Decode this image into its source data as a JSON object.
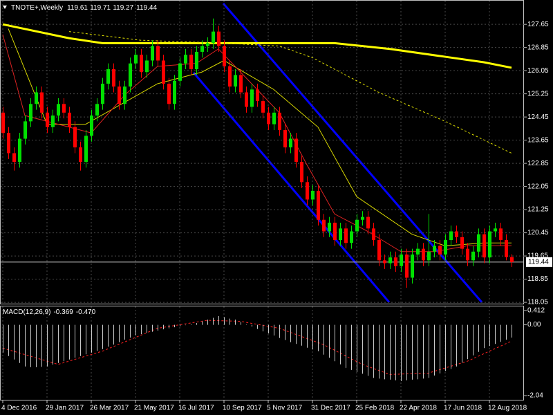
{
  "chart_data": [
    {
      "type": "candlestick",
      "title": "TNOTE+,Weekly",
      "categories": [
        "4 Dec 2016",
        null,
        null,
        null,
        null,
        null,
        null,
        null,
        "29 Jan 2017",
        null,
        null,
        null,
        null,
        null,
        null,
        null,
        "26 Mar 2017",
        null,
        null,
        null,
        null,
        null,
        null,
        null,
        "21 May 2017",
        null,
        null,
        null,
        null,
        null,
        null,
        null,
        "16 Jul 2017",
        null,
        null,
        null,
        null,
        null,
        null,
        null,
        "10 Sep 2017",
        null,
        null,
        null,
        null,
        null,
        null,
        null,
        "5 Nov 2017",
        null,
        null,
        null,
        null,
        null,
        null,
        null,
        "31 Dec 2017",
        null,
        null,
        null,
        null,
        null,
        null,
        null,
        "25 Feb 2018",
        null,
        null,
        null,
        null,
        null,
        null,
        null,
        "22 Apr 2018",
        null,
        null,
        null,
        null,
        null,
        null,
        null,
        "17 Jun 2018",
        null,
        null,
        null,
        null,
        null,
        null,
        null,
        "12 Aug 2018",
        null,
        null,
        null,
        null
      ],
      "open": [
        124.6,
        123.9,
        123.2,
        122.9,
        123.7,
        124.3,
        124.9,
        125.3,
        124.6,
        124.1,
        124.5,
        124.9,
        124.6,
        124.1,
        123.4,
        122.9,
        123.8,
        124.5,
        124.9,
        125.6,
        126.1,
        125.5,
        124.9,
        125.5,
        126.3,
        126.6,
        126.0,
        126.4,
        126.9,
        126.4,
        125.6,
        124.9,
        125.7,
        126.3,
        126.6,
        126.1,
        126.7,
        126.9,
        127.0,
        127.4,
        126.9,
        126.2,
        125.5,
        125.9,
        125.3,
        124.8,
        125.4,
        125.0,
        124.6,
        124.2,
        124.6,
        124.0,
        123.4,
        123.7,
        122.9,
        122.2,
        121.6,
        121.9,
        120.9,
        120.5,
        120.8,
        120.2,
        120.6,
        120.1,
        120.5,
        120.9,
        121.0,
        120.6,
        120.2,
        119.5,
        119.4,
        119.6,
        119.3,
        119.7,
        118.9,
        119.7,
        119.9,
        119.5,
        119.8,
        120.0,
        119.7,
        120.2,
        120.5,
        120.3,
        119.9,
        119.5,
        119.8,
        120.4,
        119.6,
        120.5,
        120.6,
        120.2,
        119.61
      ],
      "high": [
        124.8,
        124.1,
        123.4,
        123.9,
        124.5,
        125.1,
        125.5,
        125.5,
        124.8,
        124.7,
        125.1,
        125.1,
        124.8,
        124.3,
        123.6,
        124.0,
        124.7,
        125.1,
        125.8,
        126.3,
        126.3,
        125.7,
        125.7,
        126.5,
        126.8,
        126.8,
        126.6,
        127.1,
        127.1,
        126.6,
        125.8,
        125.9,
        126.5,
        126.8,
        126.8,
        126.9,
        127.1,
        127.2,
        127.85,
        127.6,
        127.1,
        126.4,
        126.1,
        126.1,
        125.5,
        125.6,
        125.6,
        125.2,
        124.8,
        124.8,
        124.8,
        124.2,
        123.9,
        123.9,
        123.1,
        122.4,
        122.1,
        122.1,
        121.1,
        121.0,
        121.0,
        120.8,
        120.8,
        120.7,
        121.1,
        121.2,
        121.2,
        120.8,
        120.4,
        119.7,
        119.8,
        119.8,
        119.9,
        119.9,
        119.9,
        120.1,
        120.1,
        121.1,
        120.2,
        120.2,
        120.4,
        120.7,
        120.7,
        120.5,
        120.1,
        120.0,
        120.6,
        120.6,
        120.7,
        120.8,
        120.8,
        120.4,
        119.71
      ],
      "low": [
        123.7,
        123.0,
        122.6,
        122.7,
        123.5,
        124.1,
        124.7,
        124.4,
        123.9,
        123.9,
        124.3,
        124.4,
        123.9,
        123.2,
        122.6,
        122.7,
        123.6,
        124.3,
        124.7,
        125.4,
        125.3,
        124.7,
        124.7,
        125.3,
        126.1,
        125.8,
        125.8,
        126.2,
        126.2,
        125.4,
        124.7,
        124.7,
        125.5,
        126.1,
        125.9,
        125.9,
        126.5,
        126.7,
        126.8,
        126.7,
        126.0,
        125.3,
        125.3,
        125.1,
        124.6,
        124.6,
        124.8,
        124.4,
        124.0,
        124.0,
        123.8,
        123.2,
        123.2,
        122.7,
        122.0,
        121.4,
        121.4,
        120.7,
        120.3,
        120.3,
        120.0,
        120.0,
        119.9,
        119.9,
        120.3,
        120.7,
        120.4,
        120.0,
        119.3,
        119.2,
        119.2,
        119.1,
        119.1,
        118.55,
        118.7,
        119.5,
        119.3,
        119.3,
        119.6,
        119.5,
        119.5,
        120.0,
        120.1,
        119.7,
        119.3,
        119.3,
        119.6,
        119.4,
        119.4,
        120.3,
        120.0,
        119.5,
        119.27
      ],
      "close": [
        123.9,
        123.2,
        122.9,
        123.7,
        124.3,
        124.9,
        125.3,
        124.6,
        124.1,
        124.5,
        124.9,
        124.6,
        124.1,
        123.4,
        122.9,
        123.8,
        124.5,
        124.9,
        125.6,
        126.1,
        125.5,
        124.9,
        125.5,
        126.3,
        126.6,
        126.0,
        126.4,
        126.9,
        126.4,
        125.6,
        124.9,
        125.7,
        126.3,
        126.6,
        126.1,
        126.7,
        126.9,
        127.0,
        127.4,
        126.9,
        126.2,
        125.5,
        125.9,
        125.3,
        124.8,
        125.4,
        125.0,
        124.6,
        124.2,
        124.6,
        124.0,
        123.4,
        123.7,
        122.9,
        122.2,
        121.6,
        121.9,
        120.9,
        120.5,
        120.8,
        120.2,
        120.6,
        120.1,
        120.5,
        120.9,
        121.0,
        120.6,
        120.2,
        119.5,
        119.4,
        119.6,
        119.3,
        119.7,
        118.9,
        119.7,
        119.9,
        119.5,
        119.8,
        120.0,
        119.7,
        120.2,
        120.5,
        120.3,
        119.9,
        119.5,
        119.8,
        120.4,
        119.6,
        120.5,
        120.6,
        120.2,
        119.61,
        119.44
      ],
      "up_color": "#00e000",
      "down_color": "#ff0000",
      "ylim": [
        117.98,
        128.49
      ],
      "yticks": [
        127.65,
        126.85,
        126.05,
        125.25,
        124.45,
        123.65,
        122.85,
        122.05,
        121.25,
        120.45,
        119.65,
        118.85,
        118.05
      ],
      "grid": true,
      "overlays": [
        {
          "color": "#ffff00",
          "width": 3,
          "dashed": false,
          "x": [
            0,
            12,
            18,
            37,
            60,
            70,
            80,
            87,
            92
          ],
          "values": [
            127.65,
            127.17,
            127.0,
            127.0,
            127.0,
            126.8,
            126.53,
            126.34,
            126.15
          ]
        },
        {
          "color": "#e0e000",
          "width": 1,
          "dashed": true,
          "x": [
            12,
            25,
            40,
            50,
            56,
            68,
            80,
            92
          ],
          "values": [
            127.4,
            127.1,
            127.0,
            126.9,
            126.5,
            125.3,
            124.3,
            123.2
          ]
        },
        {
          "color": "#d8d800",
          "width": 1,
          "dashed": false,
          "x": [
            1,
            8,
            15,
            28,
            36,
            40,
            49,
            57,
            64,
            74,
            80,
            87,
            92
          ],
          "values": [
            127.5,
            124.2,
            124.2,
            125.6,
            126.0,
            126.4,
            125.4,
            124.1,
            121.7,
            120.4,
            120.0,
            120.1,
            120.1
          ]
        },
        {
          "color": "#dd2222",
          "width": 1,
          "dashed": false,
          "x": [
            0,
            4,
            8,
            12,
            16,
            22,
            28,
            35,
            39,
            44,
            50,
            55,
            60,
            66,
            72,
            78,
            84,
            92
          ],
          "values": [
            127.3,
            124.5,
            124.3,
            124.1,
            123.9,
            125.2,
            126.2,
            126.3,
            126.8,
            125.8,
            124.6,
            122.8,
            121.1,
            120.5,
            119.8,
            119.8,
            120.0,
            120.0
          ]
        }
      ]
    },
    {
      "type": "macd",
      "title": "MACD(12,26,9)",
      "values": [
        -0.8,
        -0.9,
        -1.0,
        -1.1,
        -1.2,
        -1.22,
        -1.22,
        -1.21,
        -1.2,
        -1.15,
        -1.1,
        -1.05,
        -1.0,
        -0.95,
        -0.9,
        -0.85,
        -0.8,
        -0.75,
        -0.7,
        -0.63,
        -0.57,
        -0.5,
        -0.43,
        -0.37,
        -0.3,
        -0.27,
        -0.23,
        -0.2,
        -0.17,
        -0.13,
        -0.1,
        -0.07,
        -0.04,
        -0.01,
        0.02,
        0.05,
        0.1,
        0.15,
        0.2,
        0.25,
        0.22,
        0.18,
        0.15,
        0.08,
        0.01,
        -0.05,
        -0.12,
        -0.19,
        -0.25,
        -0.31,
        -0.38,
        -0.44,
        -0.5,
        -0.55,
        -0.6,
        -0.66,
        -0.71,
        -0.76,
        -0.86,
        -0.95,
        -1.05,
        -1.14,
        -1.24,
        -1.3,
        -1.36,
        -1.41,
        -1.47,
        -1.53,
        -1.55,
        -1.57,
        -1.58,
        -1.6,
        -1.62,
        -1.6,
        -1.58,
        -1.57,
        -1.55,
        -1.53,
        -1.46,
        -1.4,
        -1.33,
        -1.27,
        -1.2,
        -1.09,
        -0.99,
        -0.88,
        -0.78,
        -0.67,
        -0.61,
        -0.55,
        -0.49,
        -0.43,
        -0.369
      ],
      "color": "#c8c8c8",
      "signal": {
        "color": "#ff2020",
        "x": [
          0,
          10,
          18,
          28,
          37,
          43,
          50,
          58,
          65,
          70,
          77,
          84,
          92
        ],
        "values": [
          -0.67,
          -1.14,
          -0.76,
          -0.1,
          0.13,
          0.1,
          -0.1,
          -0.57,
          -1.14,
          -1.43,
          -1.39,
          -1.05,
          -0.47
        ],
        "value_labels": [
          null,
          null,
          null,
          null,
          null,
          null,
          null,
          null,
          null,
          null,
          null,
          null,
          "-0.470"
        ]
      },
      "ylim": [
        -2.16,
        0.53
      ],
      "yticks": [
        0.412,
        {
          "value": 0,
          "label": "0.00"
        },
        -2.04
      ]
    }
  ]
}
